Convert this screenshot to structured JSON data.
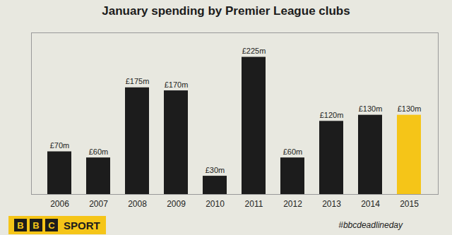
{
  "chart_data": {
    "type": "bar",
    "title": "January spending by Premier League clubs",
    "categories": [
      "2006",
      "2007",
      "2008",
      "2009",
      "2010",
      "2011",
      "2012",
      "2013",
      "2014",
      "2015"
    ],
    "values": [
      70,
      60,
      175,
      170,
      30,
      225,
      60,
      120,
      130,
      130
    ],
    "value_labels": [
      "£70m",
      "£60m",
      "£175m",
      "£170m",
      "£30m",
      "£225m",
      "£60m",
      "£120m",
      "£130m",
      "£130m"
    ],
    "colors": [
      "#1c1c1c",
      "#1c1c1c",
      "#1c1c1c",
      "#1c1c1c",
      "#1c1c1c",
      "#1c1c1c",
      "#1c1c1c",
      "#1c1c1c",
      "#1c1c1c",
      "#f5c518"
    ],
    "ylim": [
      0,
      265
    ],
    "tick_labels": "x",
    "data_labels": true,
    "grid": false,
    "annotations": [
      "B",
      "B",
      "C",
      "SPORT",
      "#bbcdeadlineday"
    ]
  }
}
